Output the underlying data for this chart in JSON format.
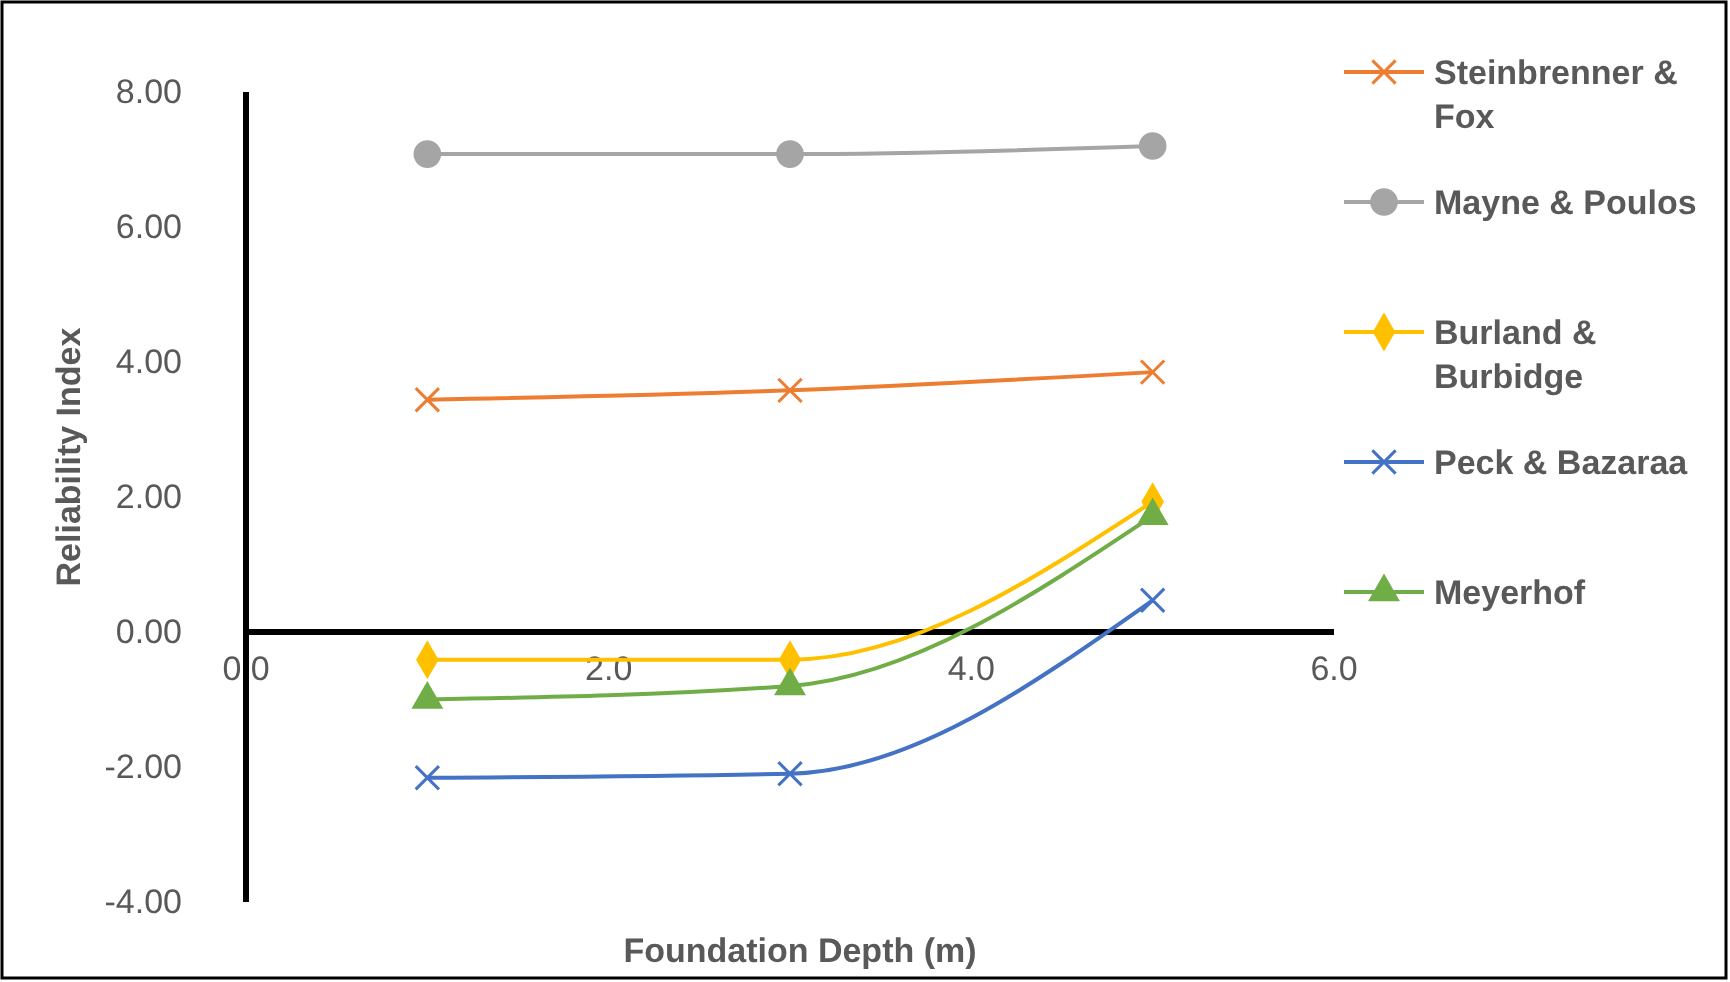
{
  "chart_data": {
    "type": "line",
    "xlabel": "Foundation Depth (m)",
    "ylabel": "Reliability Index",
    "x": [
      1,
      3,
      5
    ],
    "series": [
      {
        "name": "Steinbrenner & Fox",
        "color": "#ed7d31",
        "marker": "cross",
        "values": [
          3.44,
          3.58,
          3.85
        ]
      },
      {
        "name": "Mayne & Poulos",
        "color": "#a5a5a5",
        "marker": "circle",
        "values": [
          7.08,
          7.08,
          7.2
        ]
      },
      {
        "name": "Burland & Burbidge",
        "color": "#ffc000",
        "marker": "diamond",
        "values": [
          -0.41,
          -0.41,
          1.93
        ]
      },
      {
        "name": "Peck & Bazaraa",
        "color": "#4472c4",
        "marker": "cross",
        "values": [
          -2.16,
          -2.1,
          0.47
        ]
      },
      {
        "name": "Meyerhof",
        "color": "#70ad47",
        "marker": "triangle",
        "values": [
          -1.0,
          -0.8,
          1.72
        ]
      }
    ],
    "xlim": [
      0,
      6
    ],
    "xticks": [
      {
        "value": 0,
        "label": "0.0"
      },
      {
        "value": 2,
        "label": "2.0"
      },
      {
        "value": 4,
        "label": "4.0"
      },
      {
        "value": 6,
        "label": "6.0"
      }
    ],
    "ylim": [
      -4,
      8
    ],
    "yticks": [
      {
        "value": -4,
        "label": "-4.00"
      },
      {
        "value": -2,
        "label": "-2.00"
      },
      {
        "value": 0,
        "label": "0.00"
      },
      {
        "value": 2,
        "label": "2.00"
      },
      {
        "value": 4,
        "label": "4.00"
      },
      {
        "value": 6,
        "label": "6.00"
      },
      {
        "value": 8,
        "label": "8.00"
      }
    ],
    "grid": false,
    "legend": "right"
  }
}
